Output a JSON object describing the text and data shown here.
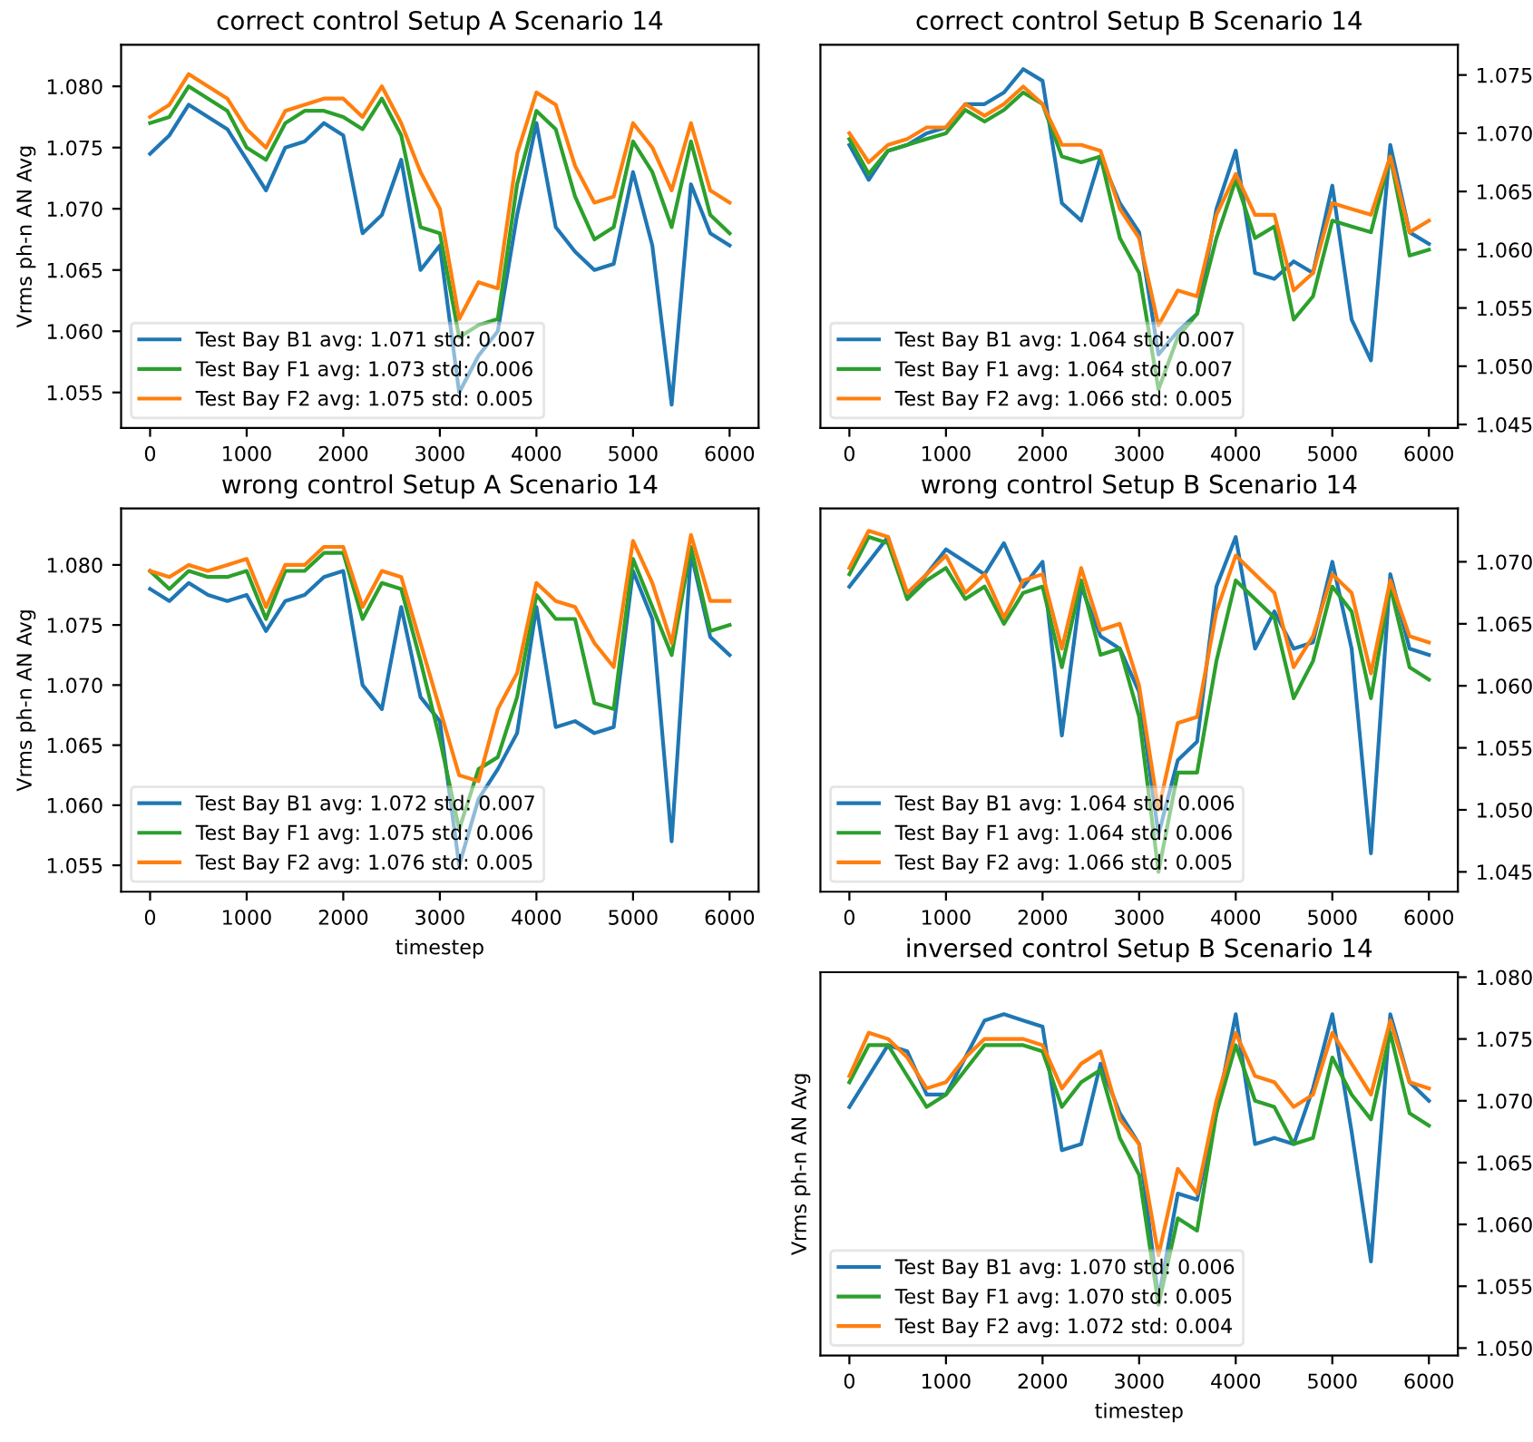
{
  "chart_data": [
    {
      "type": "line",
      "title": "correct control Setup A Scenario 14",
      "ylabel": "Vrms ph-n AN Avg",
      "legend": "bottom left",
      "x": [
        0,
        200,
        400,
        600,
        800,
        1000,
        1200,
        1400,
        1600,
        1800,
        2000,
        2200,
        2400,
        2600,
        2800,
        3000,
        3200,
        3400,
        3600,
        3800,
        4000,
        4200,
        4400,
        4600,
        4800,
        5000,
        5200,
        5400,
        5600,
        5800,
        6000
      ],
      "xlim": [
        -300,
        6300
      ],
      "xticks": [
        0,
        1000,
        2000,
        3000,
        4000,
        5000,
        6000
      ],
      "ylim": [
        1.0521,
        1.0834
      ],
      "yticks": [
        1.055,
        {
          "value": 1.06,
          "label": "1.060"
        },
        1.065,
        {
          "value": 1.07,
          "label": "1.070"
        },
        1.075,
        {
          "value": 1.08,
          "label": "1.080"
        }
      ],
      "series": [
        {
          "name": "Test Bay B1 avg: 1.071 std: 0.007",
          "color": "#1f77b4",
          "values": [
            1.0745,
            1.076,
            1.0785,
            1.0775,
            1.0765,
            1.074,
            1.0715,
            1.075,
            1.0755,
            1.077,
            1.076,
            1.068,
            1.0695,
            1.074,
            1.065,
            1.067,
            1.055,
            1.058,
            1.06,
            1.0695,
            1.077,
            1.0685,
            1.0665,
            1.065,
            1.0655,
            1.073,
            1.067,
            1.054,
            1.072,
            1.068,
            1.067
          ]
        },
        {
          "name": "Test Bay F1 avg: 1.073 std: 0.006",
          "color": "#2ca02c",
          "values": [
            1.077,
            1.0775,
            1.08,
            1.079,
            1.078,
            1.075,
            1.074,
            1.077,
            1.078,
            1.078,
            1.0775,
            1.0765,
            1.079,
            1.076,
            1.0685,
            1.068,
            1.0595,
            1.0605,
            1.061,
            1.072,
            1.078,
            1.0765,
            1.071,
            1.0675,
            1.0685,
            1.0755,
            1.073,
            1.0685,
            1.0755,
            1.0695,
            1.068
          ]
        },
        {
          "name": "Test Bay F2 avg: 1.075 std: 0.005",
          "color": "#ff7f0e",
          "values": [
            1.0775,
            1.0785,
            1.081,
            1.08,
            1.079,
            1.0765,
            1.075,
            1.078,
            1.0785,
            1.079,
            1.079,
            1.0775,
            1.08,
            1.077,
            1.073,
            1.07,
            1.061,
            1.064,
            1.0635,
            1.0745,
            1.0795,
            1.0785,
            1.0735,
            1.0705,
            1.071,
            1.077,
            1.075,
            1.0715,
            1.077,
            1.0715,
            1.0705
          ]
        }
      ]
    },
    {
      "type": "line",
      "title": "correct control Setup B Scenario 14",
      "legend": "bottom left",
      "x": [
        0,
        200,
        400,
        600,
        800,
        1000,
        1200,
        1400,
        1600,
        1800,
        2000,
        2200,
        2400,
        2600,
        2800,
        3000,
        3200,
        3400,
        3600,
        3800,
        4000,
        4200,
        4400,
        4600,
        4800,
        5000,
        5200,
        5400,
        5600,
        5800,
        6000
      ],
      "xlim": [
        -300,
        6300
      ],
      "xticks": [
        0,
        1000,
        2000,
        3000,
        4000,
        5000,
        6000
      ],
      "y2lim": [
        1.0447,
        1.0776
      ],
      "y2ticks": [
        1.045,
        {
          "value": 1.05,
          "label": "1.050"
        },
        1.055,
        {
          "value": 1.06,
          "label": "1.060"
        },
        1.065,
        {
          "value": 1.07,
          "label": "1.070"
        },
        1.075
      ],
      "series": [
        {
          "name": "Test Bay B1 avg: 1.064 std: 0.007",
          "color": "#1f77b4",
          "axis": "y2",
          "values": [
            1.069,
            1.066,
            1.0685,
            1.069,
            1.07,
            1.0705,
            1.0725,
            1.0725,
            1.0735,
            1.0755,
            1.0745,
            1.064,
            1.0625,
            1.068,
            1.064,
            1.0615,
            1.051,
            1.053,
            1.0545,
            1.0635,
            1.0685,
            1.058,
            1.0575,
            1.059,
            1.058,
            1.0655,
            1.054,
            1.0505,
            1.069,
            1.0615,
            1.0605
          ]
        },
        {
          "name": "Test Bay F1 avg: 1.064 std: 0.007",
          "color": "#2ca02c",
          "axis": "y2",
          "values": [
            1.0695,
            1.0665,
            1.0685,
            1.069,
            1.0695,
            1.07,
            1.072,
            1.071,
            1.072,
            1.0735,
            1.0725,
            1.068,
            1.0675,
            1.068,
            1.061,
            1.058,
            1.048,
            1.0525,
            1.0545,
            1.061,
            1.066,
            1.061,
            1.062,
            1.054,
            1.056,
            1.0625,
            1.062,
            1.0615,
            1.068,
            1.0595,
            1.06
          ]
        },
        {
          "name": "Test Bay F2 avg: 1.066 std: 0.005",
          "color": "#ff7f0e",
          "axis": "y2",
          "values": [
            1.07,
            1.0675,
            1.069,
            1.0695,
            1.0705,
            1.0705,
            1.0725,
            1.0715,
            1.0725,
            1.074,
            1.0725,
            1.069,
            1.069,
            1.0685,
            1.0635,
            1.061,
            1.0535,
            1.0565,
            1.056,
            1.063,
            1.0665,
            1.063,
            1.063,
            1.0565,
            1.058,
            1.064,
            1.0635,
            1.063,
            1.068,
            1.0615,
            1.0625
          ]
        }
      ]
    },
    {
      "type": "line",
      "title": "wrong control Setup A Scenario 14",
      "ylabel": "Vrms ph-n AN Avg",
      "xlabel": "timestep",
      "legend": "bottom left",
      "x": [
        0,
        200,
        400,
        600,
        800,
        1000,
        1200,
        1400,
        1600,
        1800,
        2000,
        2200,
        2400,
        2600,
        2800,
        3000,
        3200,
        3400,
        3600,
        3800,
        4000,
        4200,
        4400,
        4600,
        4800,
        5000,
        5200,
        5400,
        5600,
        5800,
        6000
      ],
      "xlim": [
        -300,
        6300
      ],
      "xticks": [
        0,
        1000,
        2000,
        3000,
        4000,
        5000,
        6000
      ],
      "ylim": [
        1.0528,
        1.0847
      ],
      "yticks": [
        1.055,
        {
          "value": 1.06,
          "label": "1.060"
        },
        1.065,
        {
          "value": 1.07,
          "label": "1.070"
        },
        1.075,
        {
          "value": 1.08,
          "label": "1.080"
        }
      ],
      "series": [
        {
          "name": "Test Bay B1 avg: 1.072 std: 0.007",
          "color": "#1f77b4",
          "values": [
            1.078,
            1.077,
            1.0785,
            1.0775,
            1.077,
            1.0775,
            1.0745,
            1.077,
            1.0775,
            1.079,
            1.0795,
            1.07,
            1.068,
            1.0765,
            1.069,
            1.067,
            1.055,
            1.0605,
            1.063,
            1.066,
            1.0765,
            1.0665,
            1.067,
            1.066,
            1.0665,
            1.0795,
            1.0755,
            1.057,
            1.081,
            1.074,
            1.0725
          ]
        },
        {
          "name": "Test Bay F1 avg: 1.075 std: 0.006",
          "color": "#2ca02c",
          "values": [
            1.0795,
            1.078,
            1.0795,
            1.079,
            1.079,
            1.0795,
            1.0755,
            1.0795,
            1.0795,
            1.081,
            1.081,
            1.0755,
            1.0785,
            1.078,
            1.072,
            1.0655,
            1.058,
            1.063,
            1.064,
            1.069,
            1.0775,
            1.0755,
            1.0755,
            1.0685,
            1.068,
            1.0805,
            1.0765,
            1.0725,
            1.0815,
            1.0745,
            1.075
          ]
        },
        {
          "name": "Test Bay F2 avg: 1.076 std: 0.005",
          "color": "#ff7f0e",
          "values": [
            1.0795,
            1.079,
            1.08,
            1.0795,
            1.08,
            1.0805,
            1.0765,
            1.08,
            1.08,
            1.0815,
            1.0815,
            1.0765,
            1.0795,
            1.079,
            1.0735,
            1.068,
            1.0625,
            1.062,
            1.068,
            1.071,
            1.0785,
            1.077,
            1.0765,
            1.0735,
            1.0715,
            1.082,
            1.0785,
            1.0735,
            1.0825,
            1.077,
            1.077
          ]
        }
      ]
    },
    {
      "type": "line",
      "title": "wrong control Setup B Scenario 14",
      "legend": "bottom left",
      "x": [
        0,
        200,
        400,
        600,
        800,
        1000,
        1200,
        1400,
        1600,
        1800,
        2000,
        2200,
        2400,
        2600,
        2800,
        3000,
        3200,
        3400,
        3600,
        3800,
        4000,
        4200,
        4400,
        4600,
        4800,
        5000,
        5200,
        5400,
        5600,
        5800,
        6000
      ],
      "xlim": [
        -300,
        6300
      ],
      "xticks": [
        0,
        1000,
        2000,
        3000,
        4000,
        5000,
        6000
      ],
      "y2lim": [
        1.0434,
        1.0743
      ],
      "y2ticks": [
        1.045,
        {
          "value": 1.05,
          "label": "1.050"
        },
        1.055,
        {
          "value": 1.06,
          "label": "1.060"
        },
        1.065,
        {
          "value": 1.07,
          "label": "1.070"
        }
      ],
      "series": [
        {
          "name": "Test Bay B1 avg: 1.064 std: 0.006",
          "color": "#1f77b4",
          "axis": "y2",
          "values": [
            1.068,
            1.07,
            1.072,
            1.067,
            1.069,
            1.071,
            1.07,
            1.069,
            1.0715,
            1.068,
            1.07,
            1.056,
            1.068,
            1.064,
            1.063,
            1.0595,
            1.048,
            1.054,
            1.0555,
            1.068,
            1.072,
            1.063,
            1.066,
            1.063,
            1.0635,
            1.07,
            1.063,
            1.0465,
            1.069,
            1.063,
            1.0625
          ]
        },
        {
          "name": "Test Bay F1 avg: 1.064 std: 0.006",
          "color": "#2ca02c",
          "axis": "y2",
          "values": [
            1.069,
            1.072,
            1.0715,
            1.067,
            1.0685,
            1.0695,
            1.067,
            1.068,
            1.065,
            1.0675,
            1.068,
            1.0615,
            1.0685,
            1.0625,
            1.063,
            1.0575,
            1.045,
            1.053,
            1.053,
            1.062,
            1.0685,
            1.067,
            1.0655,
            1.059,
            1.062,
            1.068,
            1.066,
            1.059,
            1.068,
            1.0615,
            1.0605
          ]
        },
        {
          "name": "Test Bay F2 avg: 1.066 std: 0.005",
          "color": "#ff7f0e",
          "axis": "y2",
          "values": [
            1.0695,
            1.0725,
            1.072,
            1.0675,
            1.069,
            1.0705,
            1.0675,
            1.069,
            1.0655,
            1.0685,
            1.069,
            1.063,
            1.0695,
            1.0645,
            1.065,
            1.06,
            1.05,
            1.057,
            1.0575,
            1.066,
            1.0705,
            1.069,
            1.0675,
            1.0615,
            1.064,
            1.069,
            1.0675,
            1.061,
            1.0685,
            1.064,
            1.0635
          ]
        }
      ]
    },
    {
      "type": "line",
      "title": "inversed control Setup B Scenario 14",
      "ylabel": "Vrms ph-n AN Avg",
      "xlabel": "timestep",
      "legend": "bottom left",
      "x": [
        0,
        200,
        400,
        600,
        800,
        1000,
        1200,
        1400,
        1600,
        1800,
        2000,
        2200,
        2400,
        2600,
        2800,
        3000,
        3200,
        3400,
        3600,
        3800,
        4000,
        4200,
        4400,
        4600,
        4800,
        5000,
        5200,
        5400,
        5600,
        5800,
        6000
      ],
      "xlim": [
        -300,
        6300
      ],
      "xticks": [
        0,
        1000,
        2000,
        3000,
        4000,
        5000,
        6000
      ],
      "y2lim": [
        1.0494,
        1.0804
      ],
      "y2ticks": [
        {
          "value": 1.05,
          "label": "1.050"
        },
        1.055,
        {
          "value": 1.06,
          "label": "1.060"
        },
        1.065,
        {
          "value": 1.07,
          "label": "1.070"
        },
        1.075,
        {
          "value": 1.08,
          "label": "1.080"
        }
      ],
      "series": [
        {
          "name": "Test Bay B1 avg: 1.070 std: 0.006",
          "color": "#1f77b4",
          "axis": "y2",
          "values": [
            1.0695,
            1.072,
            1.0745,
            1.074,
            1.0705,
            1.0705,
            1.0735,
            1.0765,
            1.077,
            1.0765,
            1.076,
            1.066,
            1.0665,
            1.073,
            1.069,
            1.0665,
            1.054,
            1.0625,
            1.062,
            1.069,
            1.077,
            1.0665,
            1.067,
            1.0665,
            1.071,
            1.077,
            1.0675,
            1.057,
            1.077,
            1.0715,
            1.07
          ]
        },
        {
          "name": "Test Bay F1 avg: 1.070 std: 0.005",
          "color": "#2ca02c",
          "axis": "y2",
          "values": [
            1.0715,
            1.0745,
            1.0745,
            1.072,
            1.0695,
            1.0705,
            1.0725,
            1.0745,
            1.0745,
            1.0745,
            1.074,
            1.0695,
            1.0715,
            1.0725,
            1.067,
            1.064,
            1.0535,
            1.0605,
            1.0595,
            1.069,
            1.0745,
            1.07,
            1.0695,
            1.0665,
            1.067,
            1.0735,
            1.0705,
            1.0685,
            1.0755,
            1.069,
            1.068
          ]
        },
        {
          "name": "Test Bay F2 avg: 1.072 std: 0.004",
          "color": "#ff7f0e",
          "axis": "y2",
          "values": [
            1.072,
            1.0755,
            1.075,
            1.0735,
            1.071,
            1.0715,
            1.0735,
            1.075,
            1.075,
            1.075,
            1.0745,
            1.071,
            1.073,
            1.074,
            1.0685,
            1.0665,
            1.0575,
            1.0645,
            1.0625,
            1.07,
            1.0755,
            1.072,
            1.0715,
            1.0695,
            1.0705,
            1.0755,
            1.073,
            1.0705,
            1.0765,
            1.0715,
            1.071
          ]
        }
      ]
    }
  ]
}
